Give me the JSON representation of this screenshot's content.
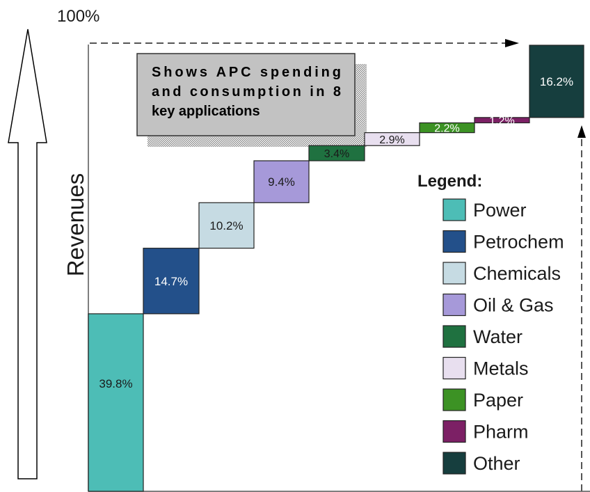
{
  "chart_data": {
    "type": "waterfall",
    "ylim": [
      0,
      100
    ],
    "top_label": "100%",
    "ylabel": "Revenues",
    "note_lines": [
      "Shows APC spending",
      "and consumption in 8",
      "key applications"
    ],
    "legend_title": "Legend:",
    "legend_position": "right",
    "categories": [
      "Power",
      "Petrochem",
      "Chemicals",
      "Oil & Gas",
      "Water",
      "Metals",
      "Paper",
      "Pharm",
      "Other"
    ],
    "values": [
      39.8,
      14.7,
      10.2,
      9.4,
      3.4,
      2.9,
      2.2,
      1.2,
      16.2
    ],
    "value_labels": [
      "39.8%",
      "14.7%",
      "10.2%",
      "9.4%",
      "3.4%",
      "2.9%",
      "2.2%",
      "1.2%",
      "16.2%"
    ],
    "colors": [
      "#4dbdb6",
      "#23508a",
      "#c6dbe3",
      "#a699d9",
      "#1f7140",
      "#e8dfef",
      "#3c9224",
      "#7c2065",
      "#163e3e"
    ],
    "label_colors": [
      "#1a1a1a",
      "#ffffff",
      "#1a1a1a",
      "#1a1a1a",
      "#1a1a1a",
      "#1a1a1a",
      "#ffffff",
      "#ffffff",
      "#ffffff"
    ]
  }
}
